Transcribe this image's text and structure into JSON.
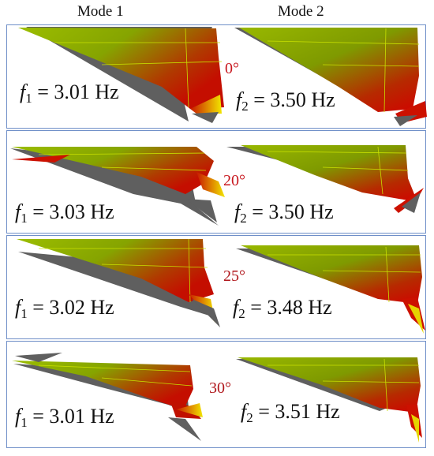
{
  "headers": {
    "mode1": "Mode 1",
    "mode2": "Mode 2"
  },
  "panels": [
    {
      "angle": "0°",
      "m1": {
        "sym": "f",
        "sub": "1",
        "text": "= 3.01 Hz"
      },
      "m2": {
        "sym": "f",
        "sub": "2",
        "text": "= 3.50 Hz"
      }
    },
    {
      "angle": "20°",
      "m1": {
        "sym": "f",
        "sub": "1",
        "text": "= 3.03 Hz"
      },
      "m2": {
        "sym": "f",
        "sub": "2",
        "text": "= 3.50 Hz"
      }
    },
    {
      "angle": "25°",
      "m1": {
        "sym": "f",
        "sub": "1",
        "text": "= 3.02 Hz"
      },
      "m2": {
        "sym": "f",
        "sub": "2",
        "text": "= 3.48 Hz"
      }
    },
    {
      "angle": "30°",
      "m1": {
        "sym": "f",
        "sub": "1",
        "text": "= 3.01 Hz"
      },
      "m2": {
        "sym": "f",
        "sub": "2",
        "text": "= 3.51 Hz"
      }
    }
  ],
  "colors": {
    "border": "#6f8fc8",
    "angle": "#c8171e",
    "undeformed": "#5f5f5f",
    "green": "#8fb500",
    "red": "#c01000",
    "yellow": "#e6d400"
  }
}
